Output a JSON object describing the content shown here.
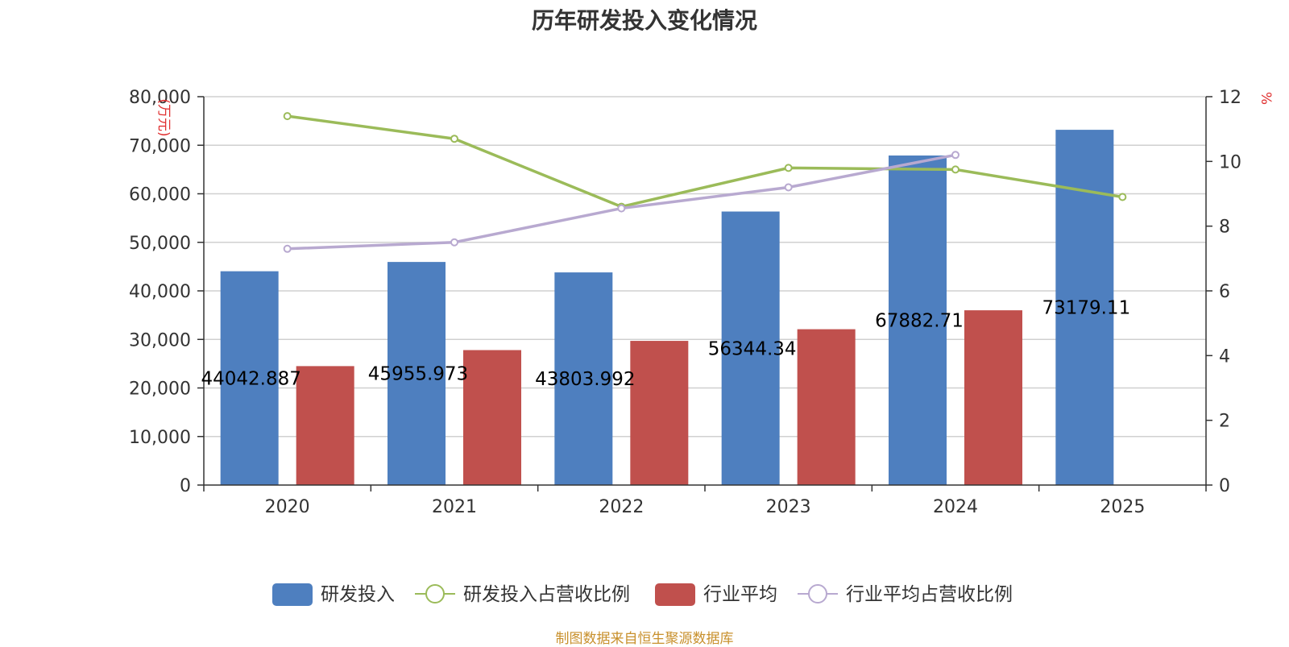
{
  "chart_data": {
    "type": "bar",
    "title": "历年研发投入变化情况",
    "categories": [
      "2020",
      "2021",
      "2022",
      "2023",
      "2024",
      "2025"
    ],
    "left_axis": {
      "unit": "(万元)",
      "min": 0,
      "max": 80000,
      "step": 10000,
      "tick_labels": [
        "0",
        "10,000",
        "20,000",
        "30,000",
        "40,000",
        "50,000",
        "60,000",
        "70,000",
        "80,000"
      ]
    },
    "right_axis": {
      "unit": "%",
      "min": 0,
      "max": 12,
      "step": 2,
      "tick_labels": [
        "0",
        "2",
        "4",
        "6",
        "8",
        "10",
        "12"
      ]
    },
    "grid": true,
    "legend_position": "bottom",
    "series": [
      {
        "name": "研发投入",
        "kind": "bar",
        "axis": "left",
        "color": "#4e7fbf",
        "values": [
          44042.887,
          45955.973,
          43803.992,
          56344.34,
          67882.71,
          73179.11
        ],
        "labels": [
          "44042.887",
          "45955.973",
          "43803.992",
          "56344.34",
          "67882.71",
          "73179.11"
        ]
      },
      {
        "name": "研发投入占营收比例",
        "kind": "line",
        "axis": "right",
        "color": "#9bbb59",
        "values": [
          11.4,
          10.7,
          8.6,
          9.8,
          9.75,
          8.9
        ]
      },
      {
        "name": "行业平均",
        "kind": "bar",
        "axis": "left",
        "color": "#c0504d",
        "values": [
          24500,
          27800,
          29700,
          32100,
          36000,
          null
        ]
      },
      {
        "name": "行业平均占营收比例",
        "kind": "line",
        "axis": "right",
        "color": "#b8a9d0",
        "values": [
          7.3,
          7.5,
          8.55,
          9.2,
          10.2,
          null
        ]
      }
    ]
  },
  "source": "制图数据来自恒生聚源数据库",
  "colors": {
    "axis": "#333333",
    "grid": "#d0d0d0",
    "unit": "#e03030"
  }
}
